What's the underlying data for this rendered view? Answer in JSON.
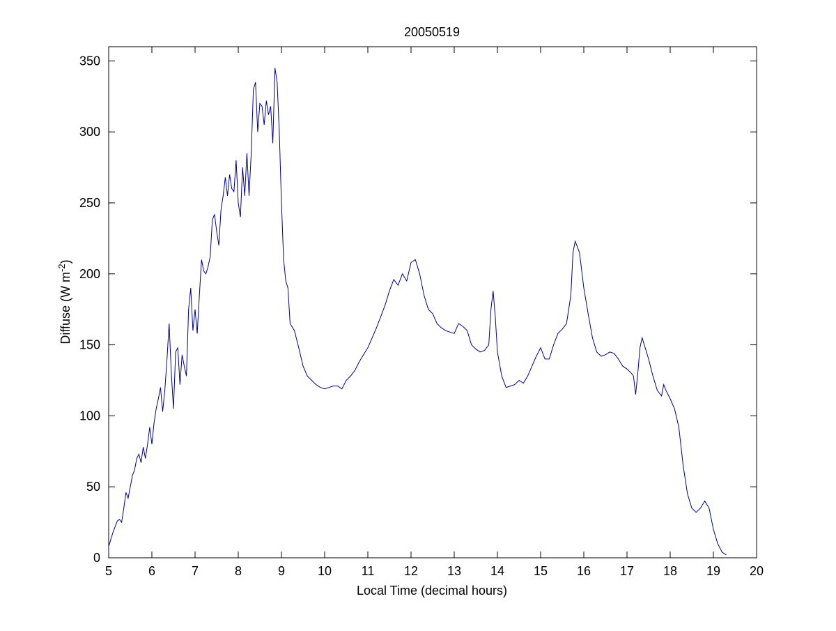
{
  "chart_data": {
    "type": "line",
    "title": "20050519",
    "xlabel": "Local Time (decimal hours)",
    "ylabel_main": "Diffuse (W m",
    "ylabel_sup": "-2",
    "ylabel_close": ")",
    "xlim": [
      5,
      20
    ],
    "ylim": [
      0,
      360
    ],
    "xticks": [
      5,
      6,
      7,
      8,
      9,
      10,
      11,
      12,
      13,
      14,
      15,
      16,
      17,
      18,
      19,
      20
    ],
    "yticks": [
      0,
      50,
      100,
      150,
      200,
      250,
      300,
      350
    ],
    "grid": false,
    "line_color": "#00008b",
    "series": [
      {
        "x": [
          5.0,
          5.1,
          5.2,
          5.25,
          5.3,
          5.35,
          5.4,
          5.45,
          5.5,
          5.55,
          5.6,
          5.65,
          5.7,
          5.75,
          5.8,
          5.85,
          5.9,
          5.95,
          6.0,
          6.05,
          6.1,
          6.15,
          6.2,
          6.25,
          6.3,
          6.35,
          6.4,
          6.45,
          6.5,
          6.55,
          6.6,
          6.65,
          6.7,
          6.75,
          6.8,
          6.85,
          6.9,
          6.95,
          7.0,
          7.05,
          7.1,
          7.15,
          7.2,
          7.25,
          7.3,
          7.35,
          7.4,
          7.45,
          7.5,
          7.55,
          7.6,
          7.65,
          7.7,
          7.75,
          7.8,
          7.85,
          7.9,
          7.95,
          8.0,
          8.05,
          8.1,
          8.15,
          8.2,
          8.25,
          8.3,
          8.35,
          8.4,
          8.45,
          8.5,
          8.55,
          8.6,
          8.65,
          8.7,
          8.75,
          8.8,
          8.85,
          8.9,
          8.95,
          9.0,
          9.05,
          9.1,
          9.15,
          9.2,
          9.3,
          9.4,
          9.5,
          9.6,
          9.7,
          9.8,
          9.9,
          10.0,
          10.1,
          10.2,
          10.3,
          10.4,
          10.5,
          10.6,
          10.7,
          10.8,
          10.9,
          11.0,
          11.1,
          11.2,
          11.3,
          11.4,
          11.5,
          11.6,
          11.7,
          11.8,
          11.9,
          12.0,
          12.1,
          12.2,
          12.3,
          12.4,
          12.5,
          12.6,
          12.7,
          12.8,
          12.9,
          13.0,
          13.1,
          13.2,
          13.3,
          13.4,
          13.5,
          13.6,
          13.7,
          13.8,
          13.85,
          13.9,
          13.95,
          14.0,
          14.1,
          14.2,
          14.3,
          14.4,
          14.5,
          14.6,
          14.7,
          14.8,
          14.9,
          15.0,
          15.1,
          15.2,
          15.3,
          15.4,
          15.5,
          15.6,
          15.7,
          15.75,
          15.8,
          15.9,
          16.0,
          16.1,
          16.2,
          16.3,
          16.4,
          16.5,
          16.6,
          16.7,
          16.8,
          16.9,
          17.0,
          17.1,
          17.15,
          17.2,
          17.25,
          17.3,
          17.35,
          17.4,
          17.5,
          17.6,
          17.7,
          17.8,
          17.85,
          17.9,
          18.0,
          18.1,
          18.2,
          18.3,
          18.4,
          18.5,
          18.6,
          18.7,
          18.8,
          18.9,
          19.0,
          19.1,
          19.2,
          19.3
        ],
        "y": [
          8,
          18,
          26,
          27,
          25,
          35,
          46,
          42,
          50,
          58,
          62,
          70,
          73,
          67,
          78,
          70,
          80,
          92,
          80,
          95,
          105,
          112,
          120,
          103,
          118,
          140,
          165,
          130,
          105,
          145,
          148,
          122,
          143,
          135,
          128,
          175,
          190,
          160,
          175,
          158,
          185,
          210,
          202,
          200,
          205,
          212,
          238,
          242,
          230,
          220,
          245,
          255,
          268,
          255,
          270,
          260,
          258,
          280,
          250,
          240,
          275,
          255,
          285,
          255,
          285,
          330,
          335,
          300,
          320,
          318,
          305,
          322,
          312,
          318,
          292,
          345,
          335,
          300,
          250,
          210,
          195,
          190,
          165,
          160,
          148,
          135,
          128,
          125,
          122,
          120,
          119,
          120,
          121,
          121,
          119,
          125,
          128,
          132,
          138,
          143,
          148,
          155,
          162,
          170,
          178,
          188,
          196,
          192,
          200,
          195,
          208,
          210,
          200,
          185,
          175,
          172,
          165,
          162,
          160,
          159,
          158,
          165,
          163,
          160,
          150,
          147,
          145,
          146,
          150,
          175,
          188,
          170,
          145,
          128,
          120,
          121,
          122,
          125,
          123,
          128,
          135,
          142,
          148,
          140,
          140,
          150,
          158,
          161,
          165,
          185,
          215,
          223,
          215,
          190,
          172,
          155,
          145,
          142,
          143,
          145,
          144,
          140,
          135,
          133,
          130,
          128,
          115,
          130,
          148,
          155,
          150,
          140,
          128,
          118,
          114,
          122,
          118,
          112,
          105,
          92,
          65,
          45,
          35,
          32,
          35,
          40,
          35,
          20,
          10,
          4,
          2
        ]
      }
    ]
  }
}
